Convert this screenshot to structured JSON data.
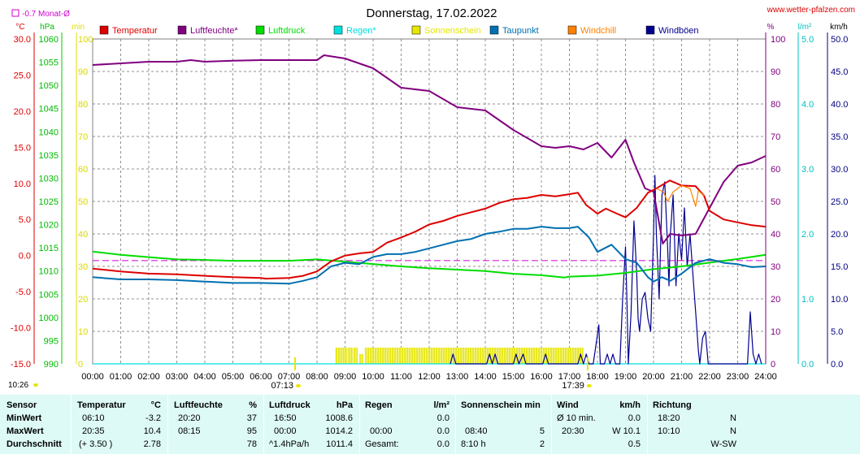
{
  "header": {
    "title": "Donnerstag, 17.02.2022",
    "website": "www.wetter-pfalzen.com",
    "month_avg": "-0.7 Monat-Ø"
  },
  "units": {
    "left": [
      "°C",
      "hPa",
      "min"
    ],
    "right": [
      "%",
      "l/m²",
      "km/h"
    ]
  },
  "legend": [
    {
      "label": "Temperatur",
      "color": "#dd0000"
    },
    {
      "label": "Luftfeuchte*",
      "color": "#800080"
    },
    {
      "label": "Luftdruck",
      "color": "#00dd00"
    },
    {
      "label": "Regen*",
      "color": "#00e0e0"
    },
    {
      "label": "Sonnenschein",
      "color": "#e6e600"
    },
    {
      "label": "Taupunkt",
      "color": "#0070b0"
    },
    {
      "label": "Windchill",
      "color": "#ff8000"
    },
    {
      "label": "Windböen",
      "color": "#000090"
    }
  ],
  "axes": {
    "temp_ticks": [
      "30.0",
      "25.0",
      "20.0",
      "15.0",
      "10.0",
      "5.0",
      "0.0",
      "-5.0",
      "-10.0",
      "-15.0"
    ],
    "pressure_ticks": [
      "1060",
      "1055",
      "1050",
      "1045",
      "1040",
      "1035",
      "1030",
      "1025",
      "1020",
      "1015",
      "1010",
      "1005",
      "1000",
      "995",
      "990"
    ],
    "min_ticks": [
      "100",
      "90",
      "80",
      "70",
      "60",
      "50",
      "40",
      "30",
      "20",
      "10",
      "0"
    ],
    "hum_ticks": [
      "100",
      "90",
      "80",
      "70",
      "60",
      "50",
      "40",
      "30",
      "20",
      "10",
      "0"
    ],
    "rain_ticks": [
      "5.0",
      "4.0",
      "3.0",
      "2.0",
      "1.0",
      "0.0"
    ],
    "wind_ticks": [
      "50.0",
      "45.0",
      "40.0",
      "35.0",
      "30.0",
      "25.0",
      "20.0",
      "15.0",
      "10.0",
      "5.0",
      "0.0"
    ],
    "x_ticks": [
      "00:00",
      "01:00",
      "02:00",
      "03:00",
      "04:00",
      "05:00",
      "06:00",
      "07:00",
      "08:00",
      "09:00",
      "10:00",
      "11:00",
      "12:00",
      "13:00",
      "14:00",
      "15:00",
      "16:00",
      "17:00",
      "18:00",
      "19:00",
      "20:00",
      "21:00",
      "22:00",
      "23:00",
      "24:00"
    ],
    "sunrise": "07:13",
    "sunset": "17:39",
    "day_length": "10:26"
  },
  "chart_data": {
    "type": "line",
    "title": "Donnerstag, 17.02.2022",
    "x_unit": "hour",
    "xlim": [
      0,
      24
    ],
    "month_avg_temperature": -0.7,
    "series": [
      {
        "name": "Temperatur",
        "axis": "°C",
        "ylim": [
          -15,
          30
        ],
        "color": "#dd0000",
        "points": [
          [
            0,
            -1.8
          ],
          [
            1,
            -2.2
          ],
          [
            2,
            -2.5
          ],
          [
            3,
            -2.6
          ],
          [
            4,
            -2.8
          ],
          [
            5,
            -3.0
          ],
          [
            6,
            -3.1
          ],
          [
            6.17,
            -3.2
          ],
          [
            7,
            -3.1
          ],
          [
            7.5,
            -2.8
          ],
          [
            8,
            -2.2
          ],
          [
            8.5,
            -0.8
          ],
          [
            9,
            0.0
          ],
          [
            9.5,
            0.3
          ],
          [
            10,
            0.5
          ],
          [
            10.5,
            1.8
          ],
          [
            11,
            2.5
          ],
          [
            11.5,
            3.3
          ],
          [
            12,
            4.3
          ],
          [
            12.5,
            4.8
          ],
          [
            13,
            5.5
          ],
          [
            13.5,
            6.0
          ],
          [
            14,
            6.5
          ],
          [
            14.5,
            7.3
          ],
          [
            15,
            7.8
          ],
          [
            15.5,
            8.0
          ],
          [
            16,
            8.4
          ],
          [
            16.5,
            8.2
          ],
          [
            17,
            8.5
          ],
          [
            17.3,
            8.7
          ],
          [
            17.6,
            7.0
          ],
          [
            18,
            5.8
          ],
          [
            18.3,
            6.5
          ],
          [
            18.7,
            5.8
          ],
          [
            19,
            5.3
          ],
          [
            19.4,
            6.6
          ],
          [
            19.8,
            8.7
          ],
          [
            20.1,
            9.3
          ],
          [
            20.58,
            10.4
          ],
          [
            21,
            9.7
          ],
          [
            21.5,
            9.6
          ],
          [
            21.8,
            8.3
          ],
          [
            22,
            6.2
          ],
          [
            22.5,
            5.0
          ],
          [
            23,
            4.6
          ],
          [
            23.5,
            4.2
          ],
          [
            24,
            4.0
          ]
        ]
      },
      {
        "name": "Luftfeuchte*",
        "axis": "%",
        "ylim": [
          0,
          100
        ],
        "color": "#800080",
        "points": [
          [
            0,
            92
          ],
          [
            1,
            92.5
          ],
          [
            2,
            93
          ],
          [
            3,
            93
          ],
          [
            3.5,
            93.5
          ],
          [
            4,
            93
          ],
          [
            5,
            93.3
          ],
          [
            6,
            93.5
          ],
          [
            7,
            93.5
          ],
          [
            8,
            93.5
          ],
          [
            8.25,
            95
          ],
          [
            9,
            94
          ],
          [
            10,
            91
          ],
          [
            11,
            85
          ],
          [
            12,
            84
          ],
          [
            13,
            79
          ],
          [
            14,
            78
          ],
          [
            15,
            72
          ],
          [
            16,
            67
          ],
          [
            16.5,
            66.5
          ],
          [
            17,
            67
          ],
          [
            17.5,
            66
          ],
          [
            18,
            68
          ],
          [
            18.5,
            63.5
          ],
          [
            19,
            69
          ],
          [
            19.3,
            62
          ],
          [
            19.7,
            54
          ],
          [
            20,
            53
          ],
          [
            20.33,
            37
          ],
          [
            20.6,
            40
          ],
          [
            21,
            39.5
          ],
          [
            21.5,
            40
          ],
          [
            22,
            48
          ],
          [
            22.5,
            56
          ],
          [
            23,
            61
          ],
          [
            23.5,
            62
          ],
          [
            24,
            64
          ]
        ]
      },
      {
        "name": "Luftdruck",
        "axis": "hPa",
        "ylim": [
          990,
          1060
        ],
        "color": "#00dd00",
        "points": [
          [
            0,
            1014.2
          ],
          [
            1,
            1013.5
          ],
          [
            2,
            1013
          ],
          [
            3,
            1012.5
          ],
          [
            4,
            1012.4
          ],
          [
            5,
            1012.2
          ],
          [
            6,
            1012.2
          ],
          [
            7,
            1012.2
          ],
          [
            8,
            1012.5
          ],
          [
            9,
            1012.0
          ],
          [
            10,
            1011.5
          ],
          [
            11,
            1011.0
          ],
          [
            12,
            1010.6
          ],
          [
            13,
            1010.3
          ],
          [
            14,
            1010.0
          ],
          [
            15,
            1009.4
          ],
          [
            16,
            1009.1
          ],
          [
            16.83,
            1008.6
          ],
          [
            17,
            1008.8
          ],
          [
            18,
            1009.0
          ],
          [
            19,
            1009.6
          ],
          [
            20,
            1010.4
          ],
          [
            21,
            1011.0
          ],
          [
            22,
            1011.8
          ],
          [
            23,
            1012.6
          ],
          [
            24,
            1013.5
          ]
        ]
      },
      {
        "name": "Taupunkt",
        "axis": "°C",
        "ylim": [
          -15,
          30
        ],
        "color": "#0070b0",
        "points": [
          [
            0,
            -3.0
          ],
          [
            1,
            -3.3
          ],
          [
            2,
            -3.3
          ],
          [
            3,
            -3.4
          ],
          [
            4,
            -3.6
          ],
          [
            5,
            -3.8
          ],
          [
            6,
            -3.8
          ],
          [
            7,
            -3.9
          ],
          [
            7.5,
            -3.5
          ],
          [
            8,
            -3.0
          ],
          [
            8.5,
            -1.5
          ],
          [
            9,
            -1.0
          ],
          [
            9.5,
            -1.2
          ],
          [
            10,
            -0.2
          ],
          [
            10.5,
            0.2
          ],
          [
            11,
            0.2
          ],
          [
            11.5,
            0.5
          ],
          [
            12,
            1.0
          ],
          [
            12.5,
            1.5
          ],
          [
            13,
            2.0
          ],
          [
            13.5,
            2.3
          ],
          [
            14,
            3.0
          ],
          [
            14.5,
            3.3
          ],
          [
            15,
            3.7
          ],
          [
            15.5,
            3.7
          ],
          [
            16,
            4.0
          ],
          [
            16.5,
            3.8
          ],
          [
            17,
            3.8
          ],
          [
            17.3,
            4.0
          ],
          [
            17.7,
            2.5
          ],
          [
            18,
            0.5
          ],
          [
            18.5,
            1.5
          ],
          [
            19,
            -0.5
          ],
          [
            19.4,
            -1.0
          ],
          [
            19.8,
            -3.0
          ],
          [
            20,
            -3.6
          ],
          [
            20.3,
            -3.0
          ],
          [
            20.6,
            -3.5
          ],
          [
            21,
            -2.5
          ],
          [
            21.5,
            -1.0
          ],
          [
            22,
            -0.5
          ],
          [
            22.5,
            -1.0
          ],
          [
            23,
            -1.2
          ],
          [
            23.5,
            -1.6
          ],
          [
            24,
            -1.5
          ]
        ]
      },
      {
        "name": "Windchill",
        "axis": "°C",
        "ylim": [
          -15,
          30
        ],
        "color": "#ff8000",
        "points": [
          [
            20.1,
            9.3
          ],
          [
            20.35,
            8.8
          ],
          [
            20.5,
            7.5
          ],
          [
            20.7,
            8.8
          ],
          [
            21.0,
            9.7
          ],
          [
            21.3,
            9.3
          ],
          [
            21.5,
            6.8
          ],
          [
            21.6,
            9.0
          ],
          [
            21.8,
            8.3
          ]
        ]
      },
      {
        "name": "Windböen",
        "axis": "km/h",
        "ylim": [
          0,
          50
        ],
        "color": "#000090",
        "points": [
          [
            12.75,
            0
          ],
          [
            12.85,
            1.5
          ],
          [
            12.95,
            0
          ],
          [
            14.05,
            0
          ],
          [
            14.15,
            1.5
          ],
          [
            14.25,
            0
          ],
          [
            14.35,
            1.5
          ],
          [
            14.45,
            0
          ],
          [
            15.0,
            0
          ],
          [
            15.1,
            1.5
          ],
          [
            15.2,
            0
          ],
          [
            15.35,
            1.5
          ],
          [
            15.45,
            0
          ],
          [
            16.05,
            0
          ],
          [
            16.15,
            1.5
          ],
          [
            16.25,
            0
          ],
          [
            17.3,
            0
          ],
          [
            17.4,
            1.5
          ],
          [
            17.5,
            0
          ],
          [
            17.6,
            1.5
          ],
          [
            17.7,
            0
          ],
          [
            17.85,
            0
          ],
          [
            17.95,
            3
          ],
          [
            18.05,
            6
          ],
          [
            18.1,
            0
          ],
          [
            18.25,
            0
          ],
          [
            18.35,
            1.5
          ],
          [
            18.45,
            0
          ],
          [
            18.55,
            1.5
          ],
          [
            18.65,
            0
          ],
          [
            18.8,
            0
          ],
          [
            18.9,
            10
          ],
          [
            19.0,
            18
          ],
          [
            19.05,
            10
          ],
          [
            19.1,
            0
          ],
          [
            19.2,
            8
          ],
          [
            19.3,
            22
          ],
          [
            19.4,
            14
          ],
          [
            19.45,
            7
          ],
          [
            19.5,
            5
          ],
          [
            19.6,
            10
          ],
          [
            19.7,
            11
          ],
          [
            19.8,
            7
          ],
          [
            19.9,
            5
          ],
          [
            20.0,
            20
          ],
          [
            20.05,
            29
          ],
          [
            20.1,
            20
          ],
          [
            20.2,
            10
          ],
          [
            20.3,
            26
          ],
          [
            20.4,
            28
          ],
          [
            20.5,
            18
          ],
          [
            20.55,
            12
          ],
          [
            20.6,
            20
          ],
          [
            20.7,
            26
          ],
          [
            20.8,
            12
          ],
          [
            20.9,
            20
          ],
          [
            21.0,
            16
          ],
          [
            21.1,
            24
          ],
          [
            21.2,
            15
          ],
          [
            21.3,
            20
          ],
          [
            21.4,
            14
          ],
          [
            21.5,
            8
          ],
          [
            21.6,
            2
          ],
          [
            21.65,
            0
          ],
          [
            21.75,
            4
          ],
          [
            21.85,
            5
          ],
          [
            21.95,
            0
          ],
          [
            23.35,
            0
          ],
          [
            23.45,
            8
          ],
          [
            23.55,
            1.5
          ],
          [
            23.65,
            0
          ],
          [
            23.75,
            1.5
          ],
          [
            23.85,
            0
          ]
        ]
      },
      {
        "name": "Regen*",
        "axis": "l/m²",
        "ylim": [
          0,
          5
        ],
        "color": "#00e0e0",
        "points": [
          [
            0,
            0
          ],
          [
            24,
            0
          ]
        ]
      },
      {
        "name": "Sonnenschein",
        "axis": "min",
        "ylim": [
          0,
          100
        ],
        "color": "#e6e600",
        "bars": [
          [
            8.65,
            8.9,
            5
          ],
          [
            8.9,
            9.1,
            5
          ],
          [
            9.1,
            9.3,
            5
          ],
          [
            9.3,
            9.45,
            5
          ],
          [
            9.5,
            9.65,
            3
          ],
          [
            9.7,
            17.5,
            5
          ]
        ]
      }
    ]
  },
  "stats": {
    "headers": {
      "sensor": "Sensor",
      "temp": "Temperatur",
      "temp_unit": "°C",
      "hum": "Luftfeuchte",
      "hum_unit": "%",
      "press": "Luftdruck",
      "press_unit": "hPa",
      "rain": "Regen",
      "rain_unit": "l/m²",
      "sun": "Sonnenschein min",
      "wind": "Wind",
      "wind_unit": "km/h",
      "dir": "Richtung"
    },
    "min": {
      "label": "MinWert",
      "temp_time": "06:10",
      "temp_val": "-3.2",
      "hum_time": "20:20",
      "hum_val": "37",
      "press_time": "16:50",
      "press_val": "1008.6",
      "rain_time": "",
      "rain_val": "0.0",
      "sun_time": "",
      "sun_val": "",
      "wind_label": "Ø 10 min.",
      "wind_val": "0.0",
      "dir_time": "18:20",
      "dir_val": "N"
    },
    "max": {
      "label": "MaxWert",
      "temp_time": "20:35",
      "temp_val": "10.4",
      "hum_time": "08:15",
      "hum_val": "95",
      "press_time": "00:00",
      "press_val": "1014.2",
      "rain_time": "00:00",
      "rain_val": "0.0",
      "sun_time": "08:40",
      "sun_val": "5",
      "wind_label": "20:30",
      "wind_val": "W 10.1",
      "dir_time": "10:10",
      "dir_val": "N"
    },
    "avg": {
      "label": "Durchschnitt",
      "temp_time": "(+ 3.50 )",
      "temp_val": "2.78",
      "hum_time": "",
      "hum_val": "78",
      "press_time": "^1.4hPa/h",
      "press_val": "1011.4",
      "rain_time": "Gesamt:",
      "rain_val": "0.0",
      "sun_time": "8:10 h",
      "sun_val": "2",
      "wind_label": "",
      "wind_val": "0.5",
      "dir_time": "",
      "dir_val": "W-SW"
    }
  }
}
